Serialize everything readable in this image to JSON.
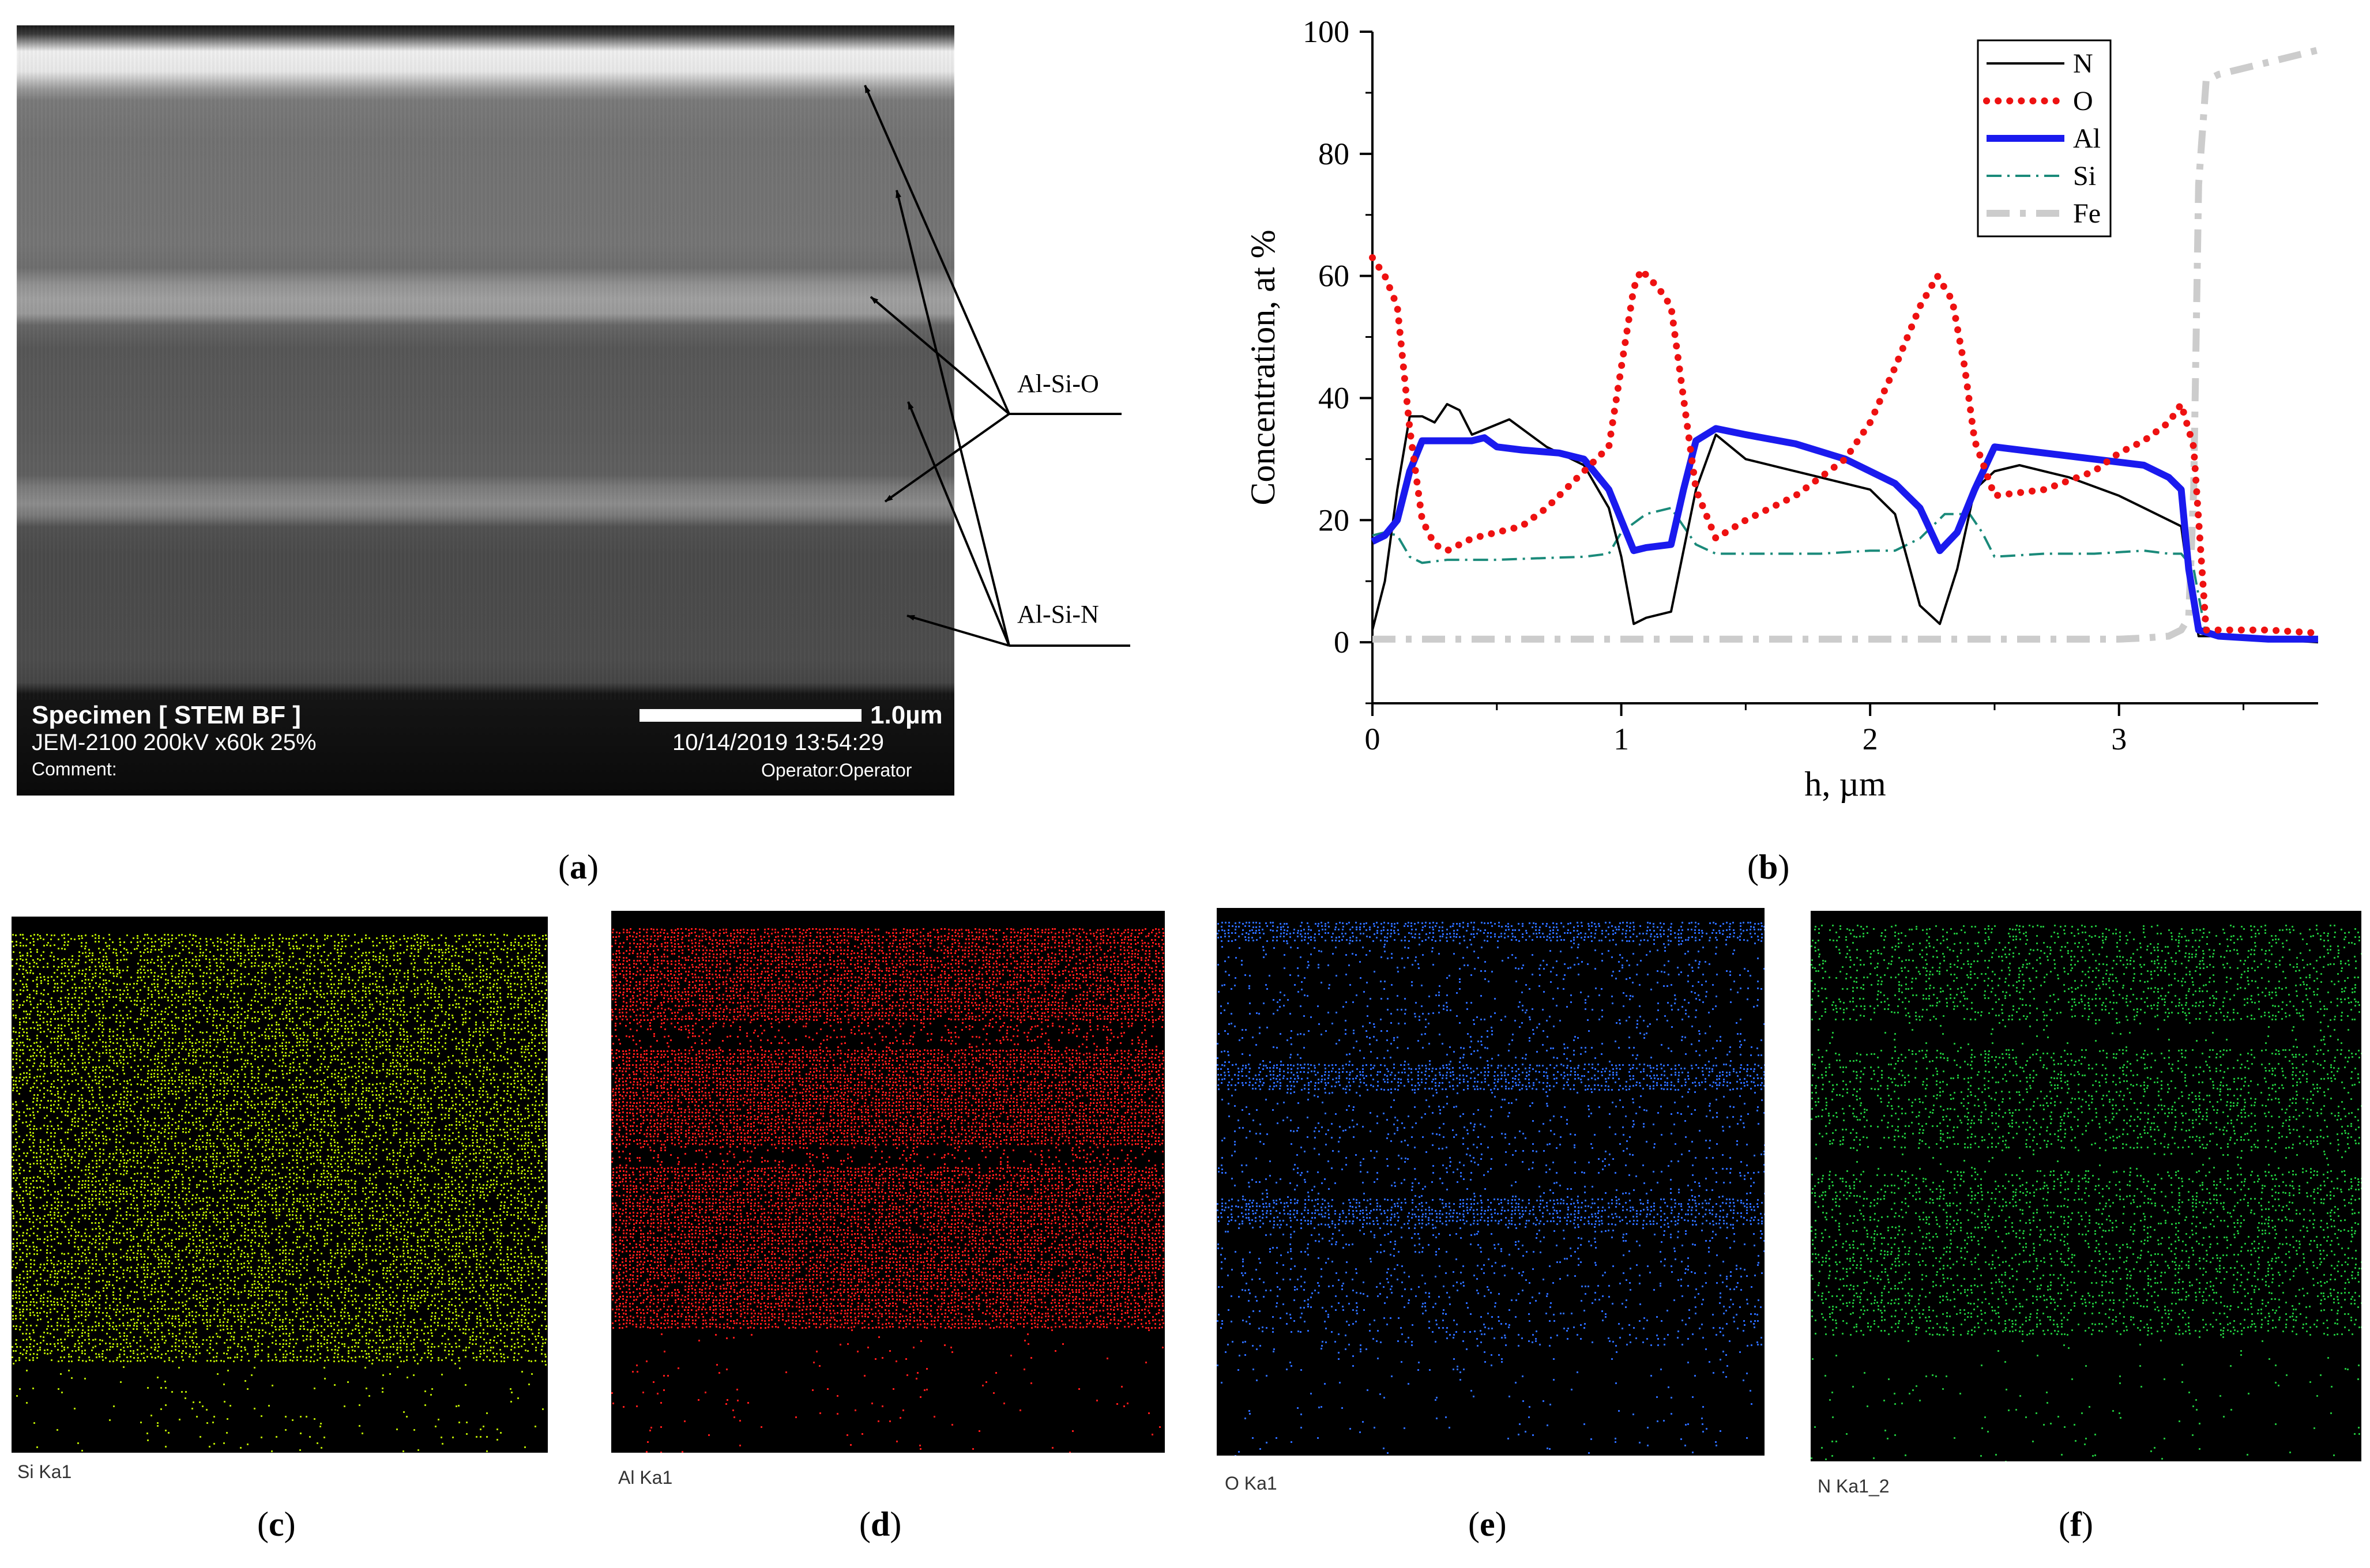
{
  "panel_a": {
    "panel_label": "a",
    "specimen": "Specimen [ STEM BF ]",
    "instrument": "JEM-2100 200kV x60k 25%",
    "comment": "Comment:",
    "scale_bar": "1.0µm",
    "datetime": "10/14/2019 13:54:29",
    "operator": "Operator:Operator",
    "annotations": [
      "Al-Si-O",
      "Al-Si-N"
    ]
  },
  "chart_data": {
    "panel_label": "b",
    "type": "line",
    "xlabel": "h, µm",
    "ylabel": "Concentration, at %",
    "xlim": [
      0,
      3.8
    ],
    "ylim": [
      -10,
      100
    ],
    "xticks": [
      "0",
      "1",
      "2",
      "3"
    ],
    "yticks": [
      "0",
      "20",
      "40",
      "60",
      "80",
      "100"
    ],
    "legend_position": "top-right",
    "series": [
      {
        "name": "N",
        "color": "#000000",
        "style": "solid-thin",
        "x": [
          0,
          0.05,
          0.1,
          0.15,
          0.2,
          0.25,
          0.3,
          0.35,
          0.4,
          0.55,
          0.7,
          0.85,
          0.95,
          1.0,
          1.05,
          1.1,
          1.2,
          1.3,
          1.38,
          1.5,
          1.65,
          1.8,
          2.0,
          2.1,
          2.2,
          2.28,
          2.35,
          2.42,
          2.5,
          2.6,
          2.8,
          3.0,
          3.1,
          3.2,
          3.25,
          3.28,
          3.32,
          3.4,
          3.5,
          3.6,
          3.8
        ],
        "y": [
          2,
          10,
          25,
          37,
          37,
          36,
          39,
          38,
          34,
          36.5,
          32,
          29,
          22,
          14,
          3,
          4,
          5,
          25,
          34,
          30,
          28.5,
          27,
          25,
          21,
          6,
          3,
          12,
          25,
          28,
          29,
          27,
          24,
          22,
          20,
          19,
          10,
          1,
          1,
          0.5,
          0.5,
          0
        ]
      },
      {
        "name": "O",
        "color": "#ee1111",
        "style": "dotted",
        "x": [
          0,
          0.05,
          0.1,
          0.15,
          0.2,
          0.25,
          0.3,
          0.4,
          0.5,
          0.6,
          0.7,
          0.85,
          0.95,
          1.0,
          1.05,
          1.08,
          1.15,
          1.2,
          1.25,
          1.3,
          1.38,
          1.5,
          1.7,
          1.9,
          2.0,
          2.1,
          2.2,
          2.27,
          2.33,
          2.38,
          2.42,
          2.5,
          2.7,
          2.9,
          3.0,
          3.1,
          3.2,
          3.25,
          3.3,
          3.35,
          3.5,
          3.6,
          3.8
        ],
        "y": [
          63,
          60,
          55,
          35,
          20,
          16,
          15,
          17,
          18,
          19,
          22,
          28,
          32,
          45,
          58,
          61,
          58,
          55,
          40,
          25,
          17,
          20,
          24,
          30,
          36,
          45,
          55,
          60,
          56,
          45,
          33,
          24,
          25,
          28,
          31,
          33,
          36,
          39,
          32,
          2,
          2,
          2,
          1.5
        ]
      },
      {
        "name": "Al",
        "color": "#1a1aee",
        "style": "solid-thick",
        "x": [
          0,
          0.05,
          0.1,
          0.15,
          0.2,
          0.25,
          0.3,
          0.4,
          0.45,
          0.5,
          0.6,
          0.75,
          0.85,
          0.95,
          1.0,
          1.05,
          1.1,
          1.2,
          1.25,
          1.3,
          1.38,
          1.5,
          1.7,
          1.9,
          2.1,
          2.2,
          2.28,
          2.35,
          2.42,
          2.5,
          2.7,
          2.9,
          3.0,
          3.1,
          3.2,
          3.25,
          3.28,
          3.32,
          3.4,
          3.6,
          3.8
        ],
        "y": [
          16.5,
          17.5,
          20,
          28,
          33,
          33,
          33,
          33,
          33.5,
          32,
          31.5,
          31,
          30,
          25,
          20,
          15,
          15.5,
          16,
          25,
          33,
          35,
          34,
          32.5,
          30,
          26,
          22,
          15,
          18,
          25,
          32,
          31,
          30,
          29.5,
          29,
          27,
          25,
          12,
          2,
          1,
          0.5,
          0.5
        ]
      },
      {
        "name": "Si",
        "color": "#1a8a7a",
        "style": "dash-dot",
        "x": [
          0,
          0.05,
          0.1,
          0.15,
          0.2,
          0.3,
          0.5,
          0.7,
          0.85,
          0.95,
          1.0,
          1.1,
          1.2,
          1.3,
          1.38,
          1.6,
          1.8,
          2.0,
          2.1,
          2.2,
          2.3,
          2.4,
          2.45,
          2.5,
          2.7,
          2.9,
          3.1,
          3.2,
          3.25,
          3.3,
          3.35,
          3.5,
          3.8
        ],
        "y": [
          17.5,
          18,
          17.5,
          14,
          13,
          13.5,
          13.5,
          13.8,
          14,
          14.5,
          18,
          21,
          22,
          16,
          14.5,
          14.5,
          14.5,
          15,
          15,
          17,
          21,
          21,
          18,
          14,
          14.5,
          14.5,
          15,
          14.5,
          14.5,
          12,
          1,
          1,
          0.5
        ]
      },
      {
        "name": "Fe",
        "color": "#cccccc",
        "style": "dash-dot-thick",
        "x": [
          0,
          0.5,
          1.0,
          1.5,
          2.0,
          2.5,
          3.0,
          3.1,
          3.2,
          3.25,
          3.28,
          3.3,
          3.32,
          3.35,
          3.4,
          3.6,
          3.8
        ],
        "y": [
          0.5,
          0.5,
          0.5,
          0.5,
          0.5,
          0.5,
          0.5,
          0.7,
          1,
          2,
          4,
          25,
          75,
          92,
          93,
          95,
          97
        ]
      }
    ]
  },
  "maps": [
    {
      "panel_label": "c",
      "map_label": "Si Ka1",
      "color": "#b4e000"
    },
    {
      "panel_label": "d",
      "map_label": "Al Ka1",
      "color": "#ff1a1a"
    },
    {
      "panel_label": "e",
      "map_label": "O Ka1",
      "color": "#2b6bff"
    },
    {
      "panel_label": "f",
      "map_label": "N Ka1_2",
      "color": "#1fbf3a"
    }
  ]
}
